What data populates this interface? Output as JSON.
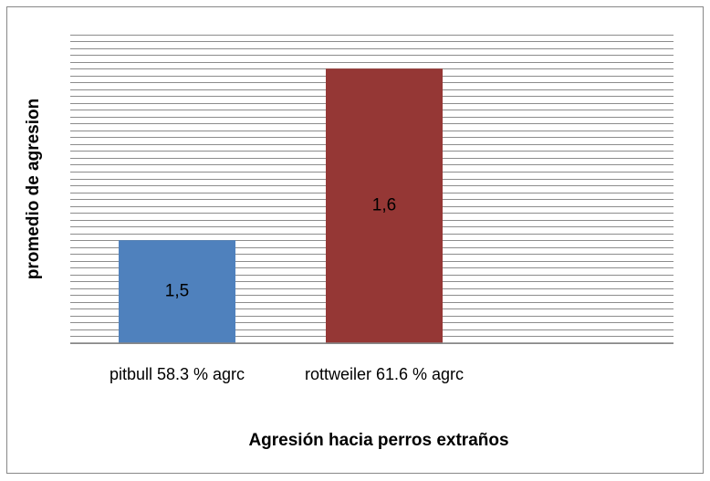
{
  "chart_data": {
    "type": "bar",
    "xlabel": "Agresión hacia perros extraños",
    "ylabel": "promedio de agresion",
    "categories": [
      "pitbull  58.3 % agrc",
      "rottweiler  61.6 % agrc",
      null
    ],
    "series": [
      {
        "colors": [
          "#4f81bd",
          "#953735"
        ],
        "values": [
          1.5,
          1.6,
          null
        ],
        "value_labels": [
          "1,5",
          "1,6",
          null
        ]
      }
    ],
    "ylim": [
      1.44,
      1.62
    ],
    "yticks": [
      1.44,
      1.444,
      1.448,
      1.452,
      1.456,
      1.46,
      1.464,
      1.468,
      1.472,
      1.476,
      1.48,
      1.484,
      1.488,
      1.492,
      1.496,
      1.5,
      1.504,
      1.508,
      1.512,
      1.516,
      1.52,
      1.524,
      1.528,
      1.532,
      1.536,
      1.54,
      1.544,
      1.548,
      1.552,
      1.556,
      1.56,
      1.564,
      1.568,
      1.572,
      1.576,
      1.58,
      1.584,
      1.588,
      1.592,
      1.596,
      1.6,
      1.604,
      1.608,
      1.612,
      1.616,
      1.62
    ],
    "grid": true
  }
}
